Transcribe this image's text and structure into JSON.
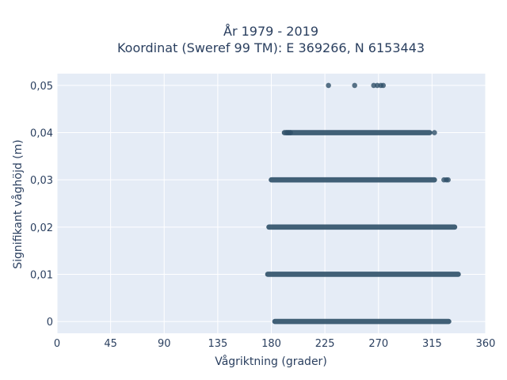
{
  "chart_data": {
    "type": "scatter",
    "title": {
      "line1": "År 1979 - 2019",
      "line2": "Koordinat (Sweref 99 TM): E 369266, N 6153443"
    },
    "xlabel": "Vågriktning (grader)",
    "ylabel": "Signifikant våghöjd (m)",
    "xlim": [
      0,
      360
    ],
    "ylim": [
      -0.0025,
      0.0525
    ],
    "x_ticks": [
      0,
      45,
      90,
      135,
      180,
      225,
      270,
      315,
      360
    ],
    "x_tick_labels": [
      "0",
      "45",
      "90",
      "135",
      "180",
      "225",
      "270",
      "315",
      "360"
    ],
    "y_ticks": [
      0,
      0.01,
      0.02,
      0.03,
      0.04,
      0.05
    ],
    "y_tick_labels": [
      "0",
      "0,01",
      "0,02",
      "0,03",
      "0,04",
      "0,05"
    ],
    "grid": true,
    "colors": {
      "marker": "#2f5069",
      "plot_background": "#e5ecf6",
      "grid": "#ffffff",
      "text": "#2a3f5f"
    },
    "bands": [
      {
        "y": 0,
        "x_min": 183,
        "x_max": 329
      },
      {
        "y": 0.01,
        "x_min": 177,
        "x_max": 337
      },
      {
        "y": 0.02,
        "x_min": 178,
        "x_max": 334
      },
      {
        "y": 0.03,
        "x_min": 180,
        "x_max": 317
      },
      {
        "y": 0.04,
        "x_min": 191,
        "x_max": 313
      }
    ],
    "points": [
      {
        "x": 193,
        "y": 0.04
      },
      {
        "x": 194.5,
        "y": 0.04
      },
      {
        "x": 196,
        "y": 0.04
      },
      {
        "x": 317,
        "y": 0.04
      },
      {
        "x": 325,
        "y": 0.03
      },
      {
        "x": 327,
        "y": 0.03
      },
      {
        "x": 328.5,
        "y": 0.03
      },
      {
        "x": 228,
        "y": 0.05
      },
      {
        "x": 250,
        "y": 0.05
      },
      {
        "x": 266,
        "y": 0.05
      },
      {
        "x": 269,
        "y": 0.05
      },
      {
        "x": 272,
        "y": 0.05
      },
      {
        "x": 274,
        "y": 0.05
      }
    ]
  }
}
